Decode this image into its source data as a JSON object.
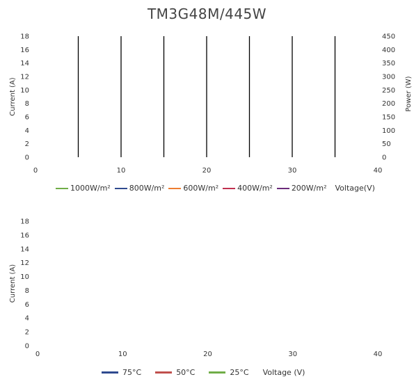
{
  "title": "TM3G48M/445W",
  "colors": {
    "1000W/m²": "#70ad47",
    "800W/m²": "#2f4a8f",
    "600W/m²": "#ed7d31",
    "400W/m²": "#c0304f",
    "200W/m²": "#6b2a7a",
    "75°C": "#2f4a8f",
    "50°C": "#c0504d",
    "25°C": "#70ad47"
  },
  "chart_data": [
    {
      "type": "line",
      "title": "TM3G48M/445W",
      "xlabel": "Voltage(V)",
      "ylabel": "Current (A)",
      "y2label": "Power (W)",
      "xlim": [
        0,
        40
      ],
      "ylim": [
        0,
        18
      ],
      "y2lim": [
        0,
        450
      ],
      "xticks": [
        0,
        10,
        20,
        30,
        40
      ],
      "yticks": [
        0,
        2,
        4,
        6,
        8,
        10,
        12,
        14,
        16,
        18
      ],
      "y2ticks": [
        0,
        50,
        100,
        150,
        200,
        250,
        300,
        350,
        400,
        450
      ],
      "vertical_lines_x": [
        5,
        10,
        15,
        20,
        25,
        30,
        35
      ],
      "legend": [
        "1000W/m²",
        "800W/m²",
        "600W/m²",
        "400W/m²",
        "200W/m²"
      ],
      "legend_position": "bottom",
      "grid": false
    },
    {
      "type": "line",
      "xlabel": "Voltage (V)",
      "ylabel": "Current (A)",
      "xlim": [
        0,
        40
      ],
      "ylim": [
        0,
        18
      ],
      "xticks": [
        0,
        10,
        20,
        30,
        40
      ],
      "yticks": [
        0,
        2,
        4,
        6,
        8,
        10,
        12,
        14,
        16,
        18
      ],
      "legend": [
        "75°C",
        "50°C",
        "25°C"
      ],
      "legend_position": "bottom",
      "grid": false
    }
  ]
}
